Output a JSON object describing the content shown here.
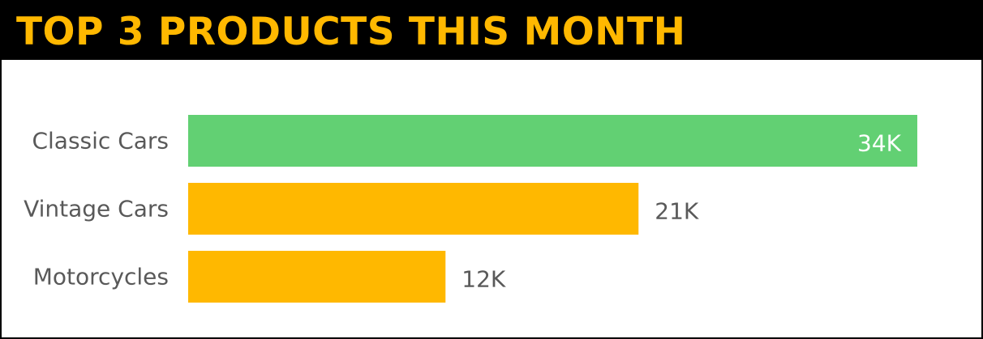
{
  "header": {
    "title": "TOP 3 PRODUCTS THIS MONTH"
  },
  "colors": {
    "title_background": "#000000",
    "title_text": "#FFB800",
    "highlight_bar": "#62D073",
    "default_bar": "#FFB800",
    "category_label": "#595959",
    "value_label_outside": "#595959",
    "value_label_inside": "#FFFFFF"
  },
  "chart_data": {
    "type": "bar",
    "orientation": "horizontal",
    "title": "TOP 3 PRODUCTS THIS MONTH",
    "categories": [
      "Classic Cars",
      "Vintage Cars",
      "Motorcycles"
    ],
    "values": [
      34000,
      21000,
      12000
    ],
    "data_labels": [
      "34K",
      "21K",
      "12K"
    ],
    "highlight_index": 0,
    "xlim": [
      0,
      34000
    ],
    "grid": false,
    "legend": "none"
  }
}
